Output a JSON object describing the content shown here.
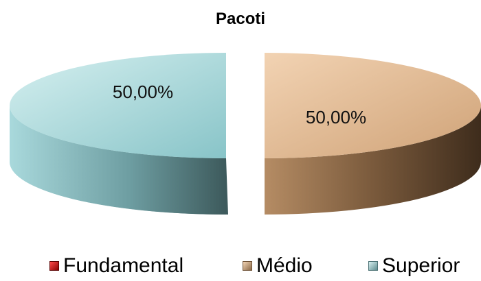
{
  "chart_data": {
    "type": "pie",
    "title": "Pacoti",
    "categories": [
      "Fundamental",
      "Médio",
      "Superior"
    ],
    "values": [
      0,
      50,
      50
    ],
    "data_labels": [
      "",
      "50,00%",
      "50,00%"
    ],
    "colors": [
      "#c00000",
      "#d9b28f",
      "#9fd3d6"
    ],
    "legend": "bottom",
    "style": "3d-exploded"
  }
}
